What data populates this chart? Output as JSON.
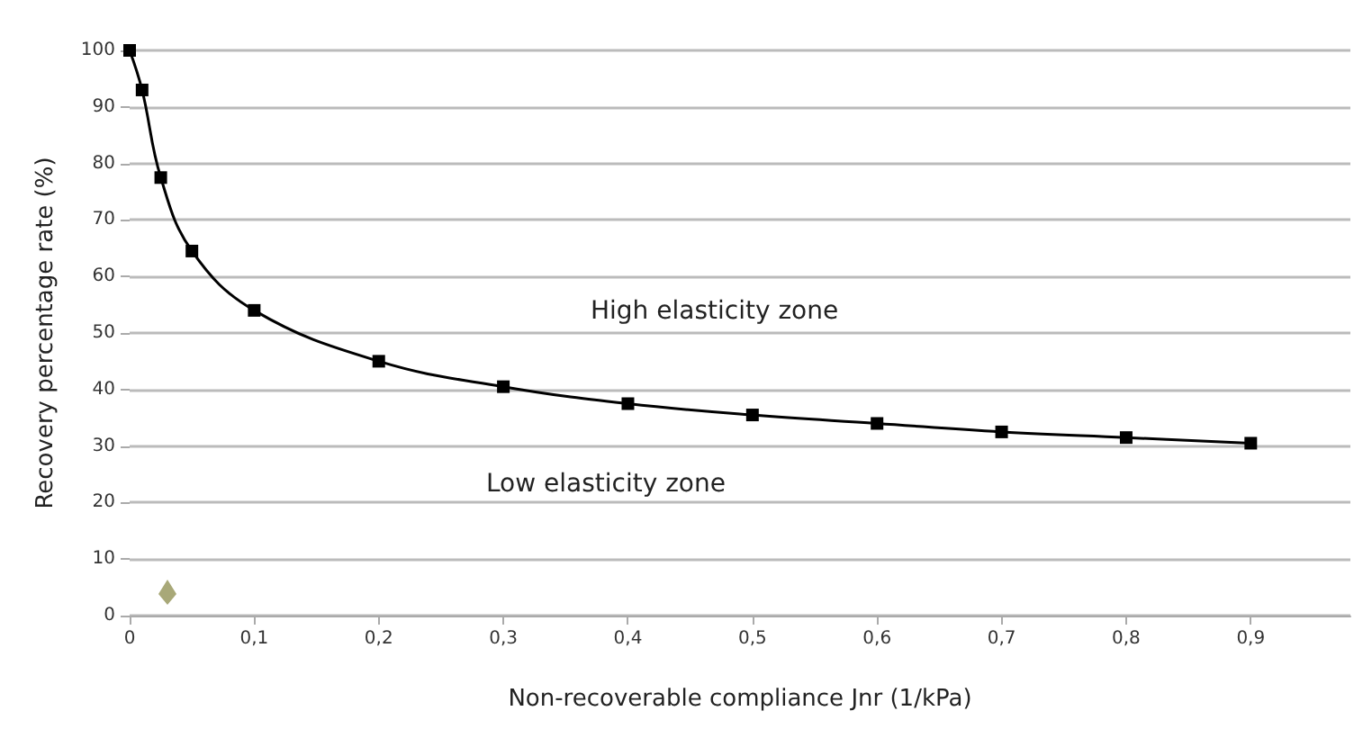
{
  "chart_data": {
    "type": "line",
    "xlabel": "Non-recoverable compliance Jnr (1/kPa)",
    "ylabel": "Recovery percentage rate (%)",
    "x": [
      0,
      0.01,
      0.025,
      0.05,
      0.1,
      0.2,
      0.3,
      0.4,
      0.5,
      0.6,
      0.7,
      0.8,
      0.9
    ],
    "series": [
      {
        "color": "#000000",
        "values": [
          100,
          93,
          77.5,
          64.5,
          54,
          45,
          40.5,
          37.5,
          35.5,
          34,
          32.5,
          31.5,
          30.5
        ]
      }
    ],
    "xlim": [
      0,
      0.98
    ],
    "xticks": [
      0,
      {
        "value": 0.1,
        "label": "0,1"
      },
      {
        "value": 0.2,
        "label": "0,2"
      },
      {
        "value": 0.3,
        "label": "0,3"
      },
      {
        "value": 0.4,
        "label": "0,4"
      },
      {
        "value": 0.5,
        "label": "0,5"
      },
      {
        "value": 0.6,
        "label": "0,6"
      },
      {
        "value": 0.7,
        "label": "0,7"
      },
      {
        "value": 0.8,
        "label": "0,8"
      },
      {
        "value": 0.9,
        "label": "0,9"
      }
    ],
    "ylim": [
      0,
      100
    ],
    "yticks": [
      0,
      10,
      20,
      30,
      40,
      50,
      60,
      70,
      80,
      90,
      100
    ],
    "grid": "y",
    "marker": "square",
    "line_style": "solid",
    "annotations": [
      "High elasticity zone",
      "Low elasticity zone"
    ]
  }
}
